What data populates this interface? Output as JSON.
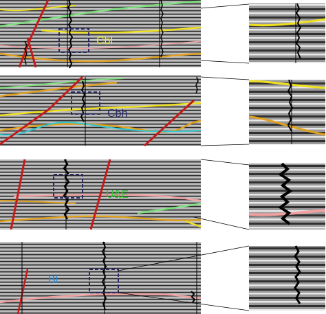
{
  "panels": [
    {
      "label": "Cbl",
      "color": "#e8e84a"
    },
    {
      "label": "Cbh",
      "color": "#2a2a6a"
    },
    {
      "label": "U&E",
      "color": "#37c337"
    },
    {
      "label": "Bl",
      "color": "#2a8ad6"
    }
  ],
  "colors": {
    "horizon_yellow": "#f0e020",
    "horizon_orange": "#e0a020",
    "horizon_green": "#7de07d",
    "horizon_cyan": "#30c8d0",
    "horizon_pink": "#f0a0a0",
    "fault_red": "#c41a1a",
    "well_log": "#000000",
    "selection_box": "#2a2a6a"
  }
}
